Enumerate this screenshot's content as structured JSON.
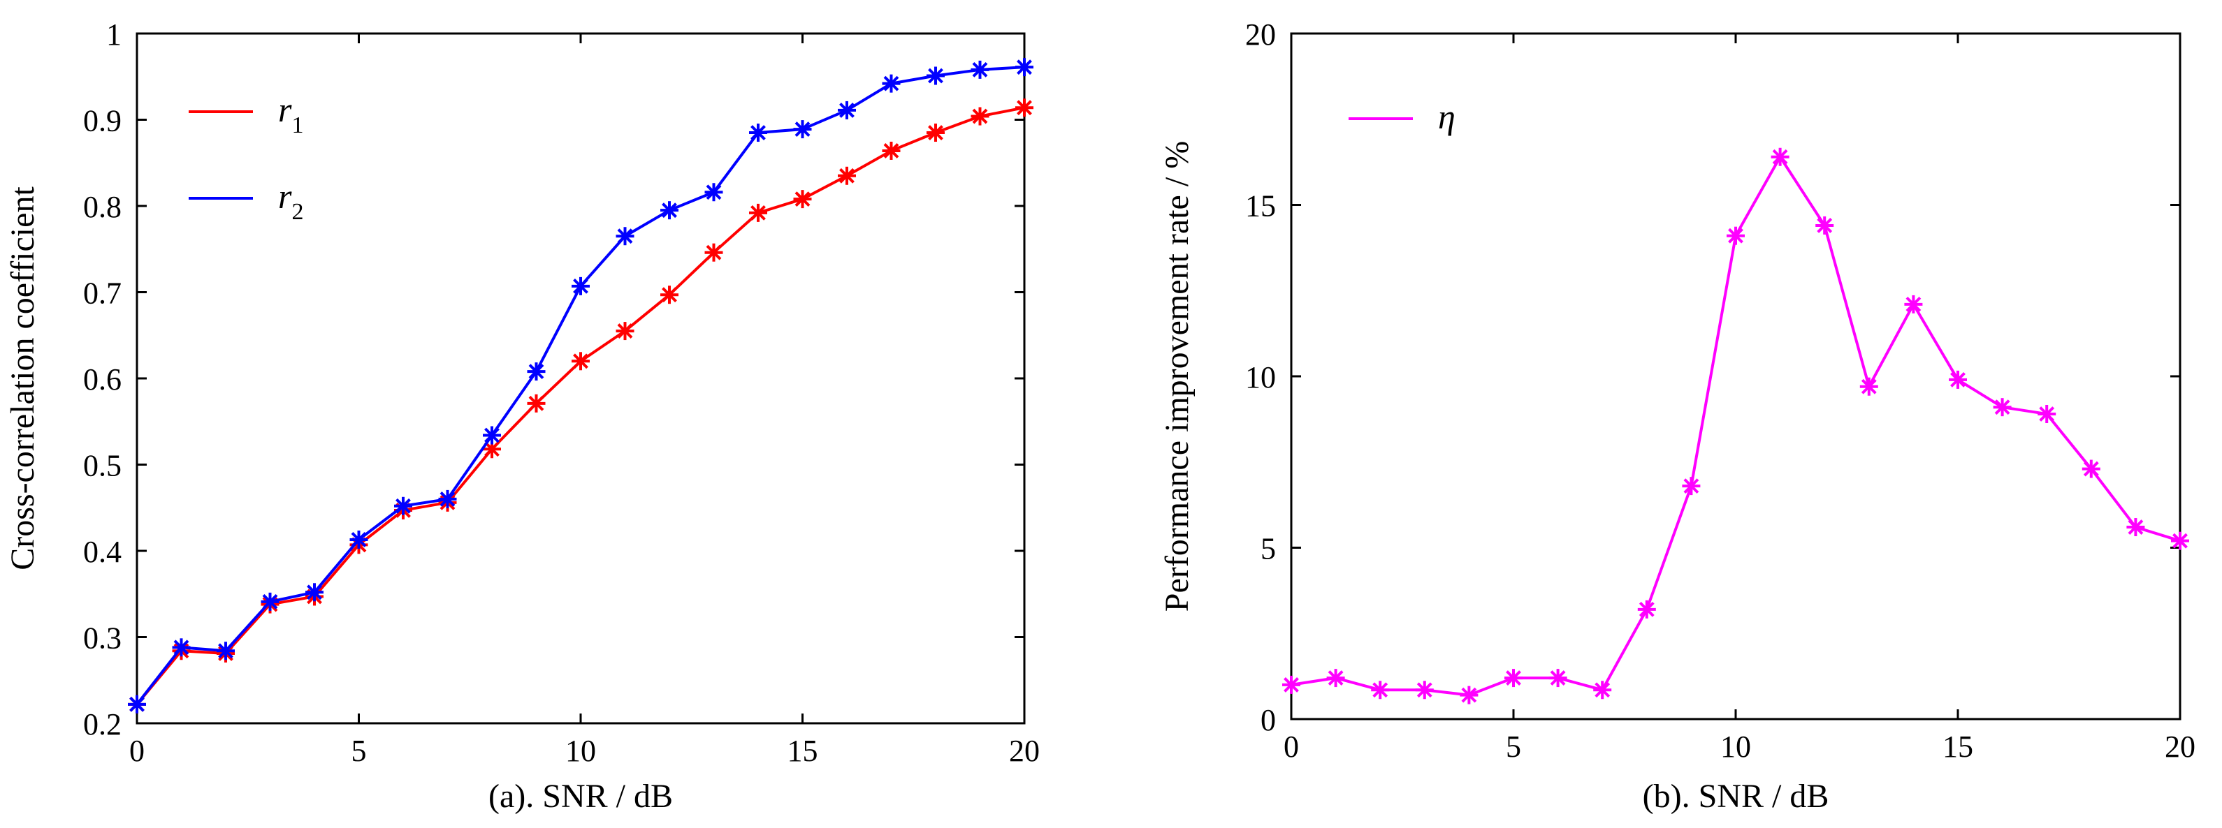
{
  "chart_data": [
    {
      "type": "line",
      "title": "",
      "xlabel": "(a).  SNR / dB",
      "ylabel": "Cross-correlation coefficient",
      "xlim": [
        0,
        20
      ],
      "ylim": [
        0.2,
        1.0
      ],
      "xticks": [
        0,
        5,
        10,
        15,
        20
      ],
      "yticks": [
        0.2,
        0.3,
        0.4,
        0.5,
        0.6,
        0.7,
        0.8,
        0.9,
        1.0
      ],
      "ytick_labels": [
        "0.2",
        "0.3",
        "0.4",
        "0.5",
        "0.6",
        "0.7",
        "0.8",
        "0.9",
        "1"
      ],
      "legend_position": "top-left",
      "x": [
        0,
        1,
        2,
        3,
        4,
        5,
        6,
        7,
        8,
        9,
        10,
        11,
        12,
        13,
        14,
        15,
        16,
        17,
        18,
        19,
        20
      ],
      "series": [
        {
          "name": "r",
          "subscript": "1",
          "color": "#ff0000",
          "values": [
            0.222,
            0.284,
            0.281,
            0.338,
            0.347,
            0.407,
            0.447,
            0.456,
            0.518,
            0.571,
            0.62,
            0.655,
            0.697,
            0.746,
            0.792,
            0.808,
            0.835,
            0.864,
            0.885,
            0.904,
            0.914
          ]
        },
        {
          "name": "r",
          "subscript": "2",
          "color": "#0000ff",
          "values": [
            0.222,
            0.288,
            0.284,
            0.341,
            0.352,
            0.413,
            0.452,
            0.46,
            0.534,
            0.608,
            0.707,
            0.765,
            0.795,
            0.816,
            0.885,
            0.889,
            0.911,
            0.942,
            0.951,
            0.958,
            0.961
          ]
        }
      ]
    },
    {
      "type": "line",
      "title": "",
      "xlabel": "(b).  SNR / dB",
      "ylabel": "Performance improvement rate / %",
      "xlim": [
        0,
        20
      ],
      "ylim": [
        0,
        20
      ],
      "xticks": [
        0,
        5,
        10,
        15,
        20
      ],
      "yticks": [
        0,
        5,
        10,
        15,
        20
      ],
      "ytick_labels": [
        "0",
        "5",
        "10",
        "15",
        "20"
      ],
      "legend_position": "top-left",
      "x": [
        0,
        1,
        2,
        3,
        4,
        5,
        6,
        7,
        8,
        9,
        10,
        11,
        12,
        13,
        14,
        15,
        16,
        17,
        18,
        19,
        20
      ],
      "series": [
        {
          "name": "η",
          "subscript": "",
          "color": "#ff00ff",
          "values": [
            1.0,
            1.2,
            0.85,
            0.85,
            0.7,
            1.2,
            1.2,
            0.85,
            3.2,
            6.8,
            14.1,
            16.4,
            14.4,
            9.7,
            12.1,
            9.9,
            9.1,
            8.9,
            7.3,
            5.6,
            5.2
          ]
        }
      ]
    }
  ]
}
